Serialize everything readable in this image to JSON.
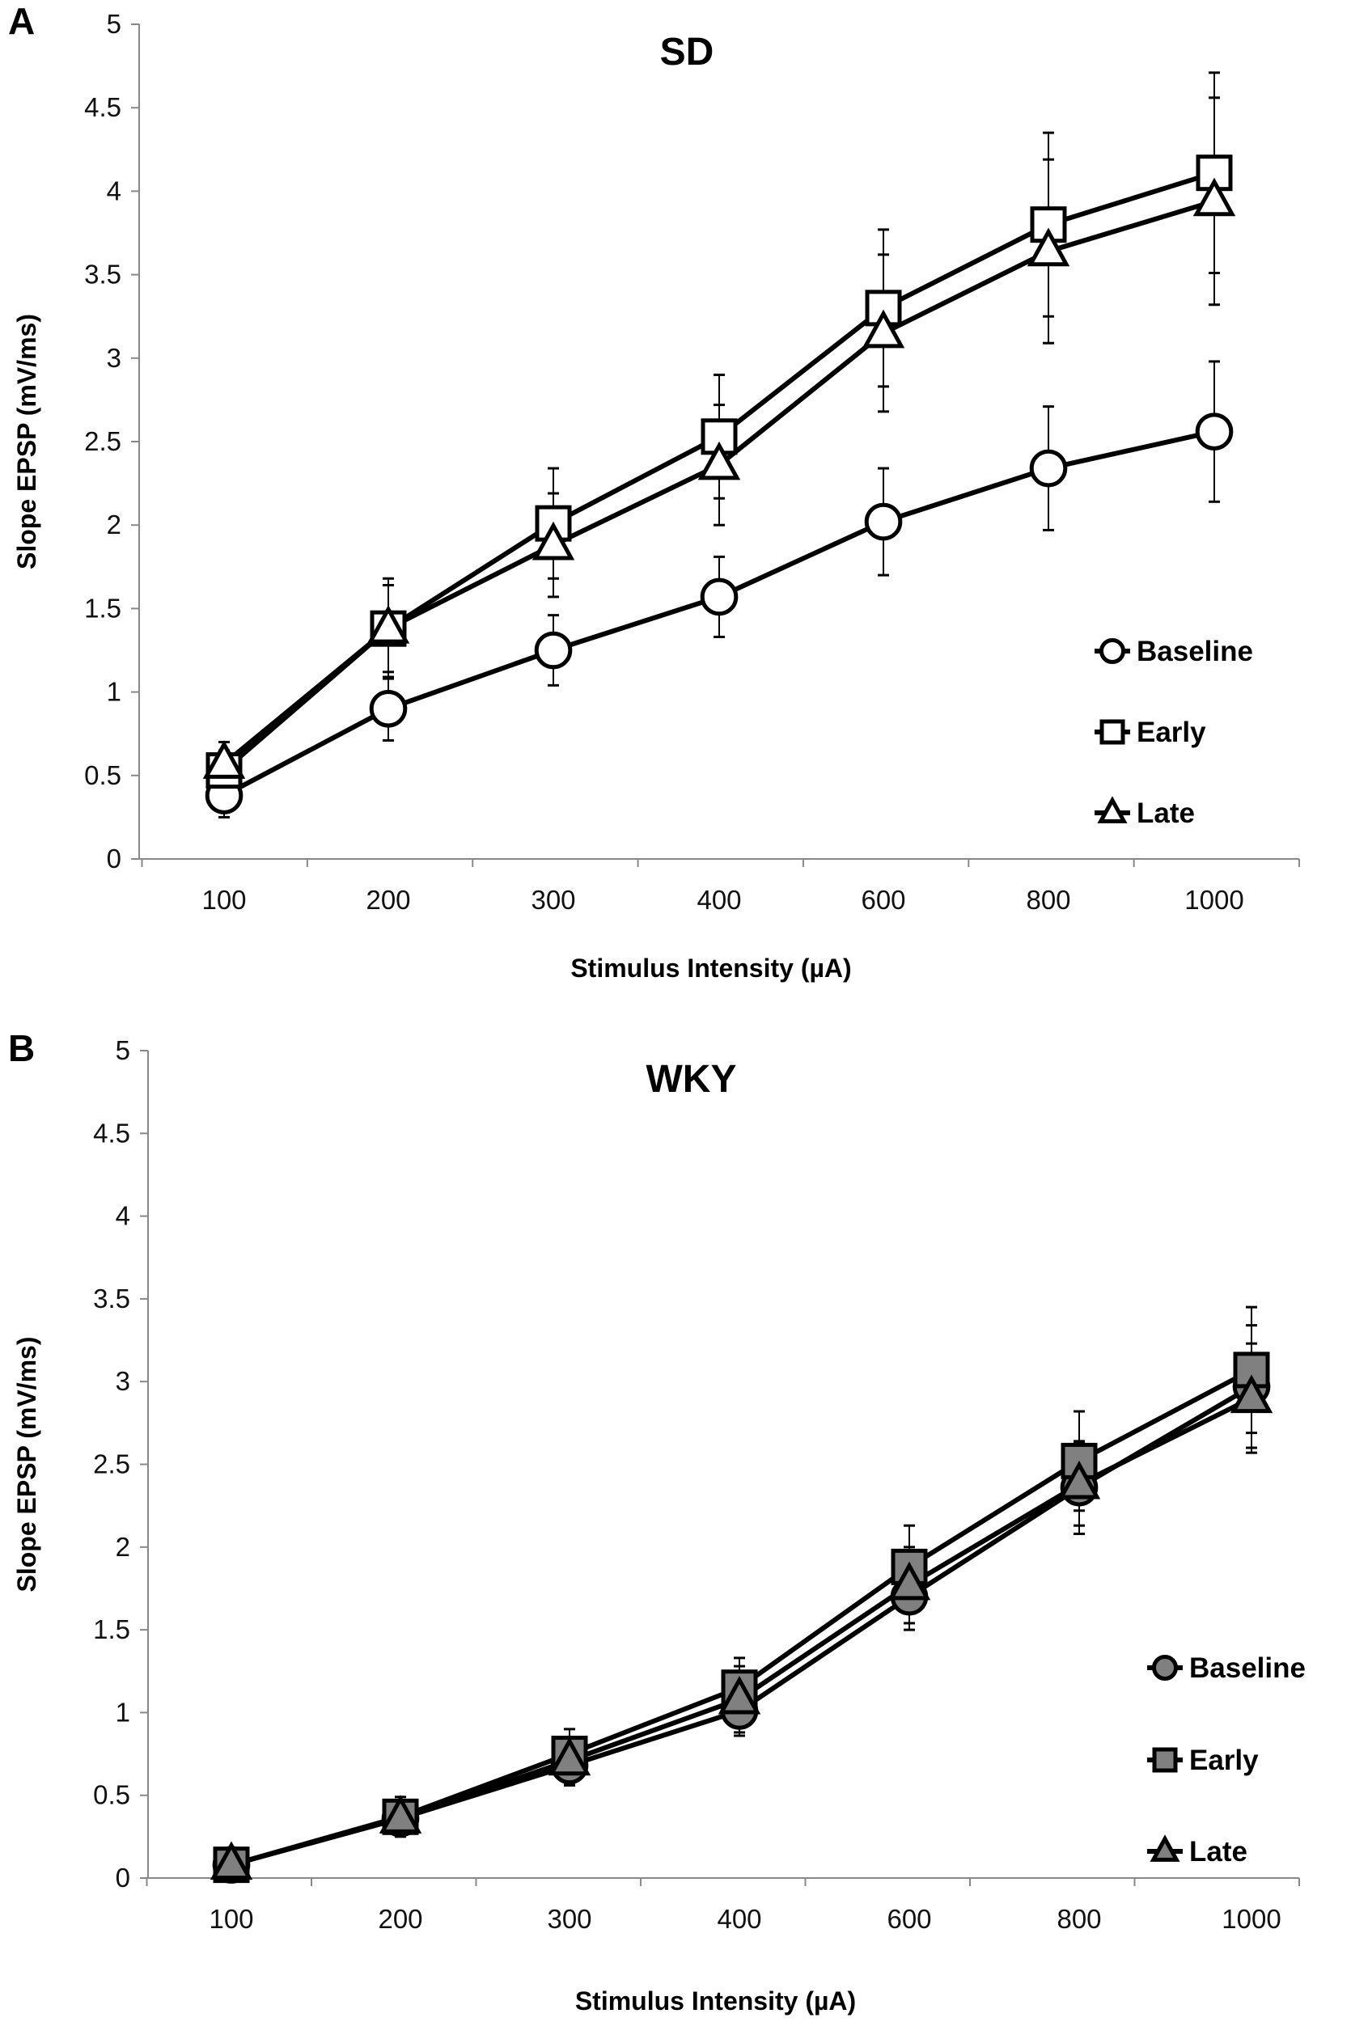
{
  "chart_data": [
    {
      "type": "line",
      "panel_label": "A",
      "title": "SD",
      "xlabel": "Stimulus Intensity (µA)",
      "ylabel": "Slope EPSP (mV/ms)",
      "categories": [
        "100",
        "200",
        "300",
        "400",
        "600",
        "800",
        "1000"
      ],
      "ylim": [
        0,
        5
      ],
      "yticks": [
        "0",
        "0.5",
        "1",
        "1.5",
        "2",
        "2.5",
        "3",
        "3.5",
        "4",
        "4.5",
        "5"
      ],
      "grid": false,
      "legend_position": "right",
      "marker_fill": "#ffffff",
      "series": [
        {
          "name": "Baseline",
          "marker": "circle",
          "values": [
            0.38,
            0.9,
            1.25,
            1.57,
            2.02,
            2.34,
            2.56
          ],
          "error": [
            0.13,
            0.19,
            0.21,
            0.24,
            0.32,
            0.37,
            0.42
          ]
        },
        {
          "name": "Early",
          "marker": "square",
          "values": [
            0.53,
            1.38,
            2.01,
            2.53,
            3.3,
            3.8,
            4.11
          ],
          "error": [
            0.17,
            0.3,
            0.33,
            0.37,
            0.47,
            0.55,
            0.6
          ]
        },
        {
          "name": "Late",
          "marker": "triangle",
          "values": [
            0.57,
            1.38,
            1.88,
            2.36,
            3.15,
            3.64,
            3.94
          ],
          "error": [
            0.08,
            0.26,
            0.31,
            0.36,
            0.47,
            0.55,
            0.62
          ]
        }
      ]
    },
    {
      "type": "line",
      "panel_label": "B",
      "title": "WKY",
      "xlabel": "Stimulus Intensity (µA)",
      "ylabel": "Slope EPSP (mV/ms)",
      "categories": [
        "100",
        "200",
        "300",
        "400",
        "600",
        "800",
        "1000"
      ],
      "ylim": [
        0,
        5
      ],
      "yticks": [
        "0",
        "0.5",
        "1",
        "1.5",
        "2",
        "2.5",
        "3",
        "3.5",
        "4",
        "4.5",
        "5"
      ],
      "grid": false,
      "legend_position": "right",
      "marker_fill": "#808080",
      "series": [
        {
          "name": "Baseline",
          "marker": "circle",
          "values": [
            0.08,
            0.36,
            0.68,
            1.01,
            1.7,
            2.36,
            2.97
          ],
          "error": [
            0.03,
            0.1,
            0.12,
            0.15,
            0.2,
            0.28,
            0.37
          ]
        },
        {
          "name": "Early",
          "marker": "square",
          "values": [
            0.08,
            0.37,
            0.75,
            1.15,
            1.88,
            2.52,
            3.07
          ],
          "error": [
            0.05,
            0.12,
            0.15,
            0.18,
            0.25,
            0.3,
            0.38
          ]
        },
        {
          "name": "Late",
          "marker": "triangle",
          "values": [
            0.08,
            0.36,
            0.71,
            1.08,
            1.77,
            2.38,
            2.9
          ],
          "error": [
            0.03,
            0.1,
            0.14,
            0.2,
            0.23,
            0.25,
            0.33
          ]
        }
      ]
    }
  ]
}
